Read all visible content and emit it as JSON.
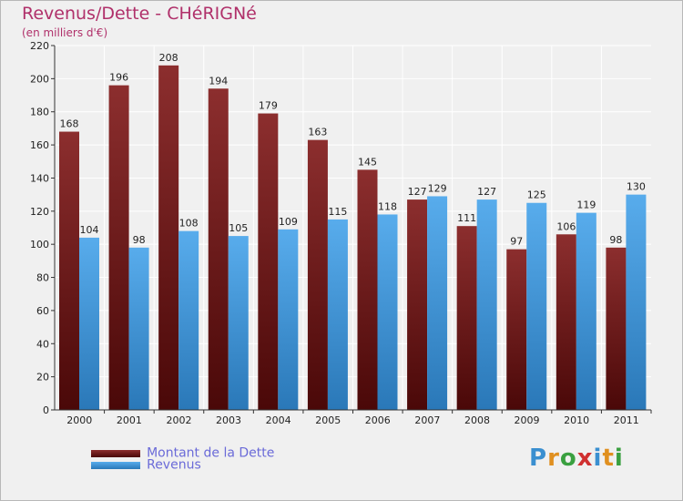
{
  "header": {
    "title": "Revenus/Dette - CHéRIGNé",
    "subtitle": "(en milliers d'€)"
  },
  "chart_data": {
    "type": "bar",
    "title": "Revenus/Dette - CHéRIGNé",
    "ylabel": "(en milliers d'€)",
    "xlabel": "",
    "ylim": [
      0,
      220
    ],
    "yticks": [
      0,
      20,
      40,
      60,
      80,
      100,
      120,
      140,
      160,
      180,
      200,
      220
    ],
    "grid": true,
    "categories": [
      "2000",
      "2001",
      "2002",
      "2003",
      "2004",
      "2005",
      "2006",
      "2007",
      "2008",
      "2009",
      "2010",
      "2011"
    ],
    "series": [
      {
        "name": "Montant de la Dette",
        "color": "#7a2020",
        "values": [
          168,
          196,
          208,
          194,
          179,
          163,
          145,
          127,
          111,
          97,
          106,
          98
        ]
      },
      {
        "name": "Revenus",
        "color": "#3d95d8",
        "values": [
          104,
          98,
          108,
          105,
          109,
          115,
          118,
          129,
          127,
          125,
          119,
          130
        ]
      }
    ]
  },
  "legend": {
    "items": [
      {
        "label": "Montant de la Dette",
        "color": "#6e1515"
      },
      {
        "label": "Revenus",
        "color": "#3d95d8"
      }
    ]
  },
  "logo": {
    "text": "Proxiti",
    "letters": [
      "P",
      "r",
      "o",
      "x",
      "i",
      "t",
      "i"
    ],
    "colors": [
      "#3a8fd0",
      "#e09020",
      "#3aa040",
      "#d03030",
      "#3a8fd0",
      "#e09020",
      "#3aa040"
    ]
  }
}
